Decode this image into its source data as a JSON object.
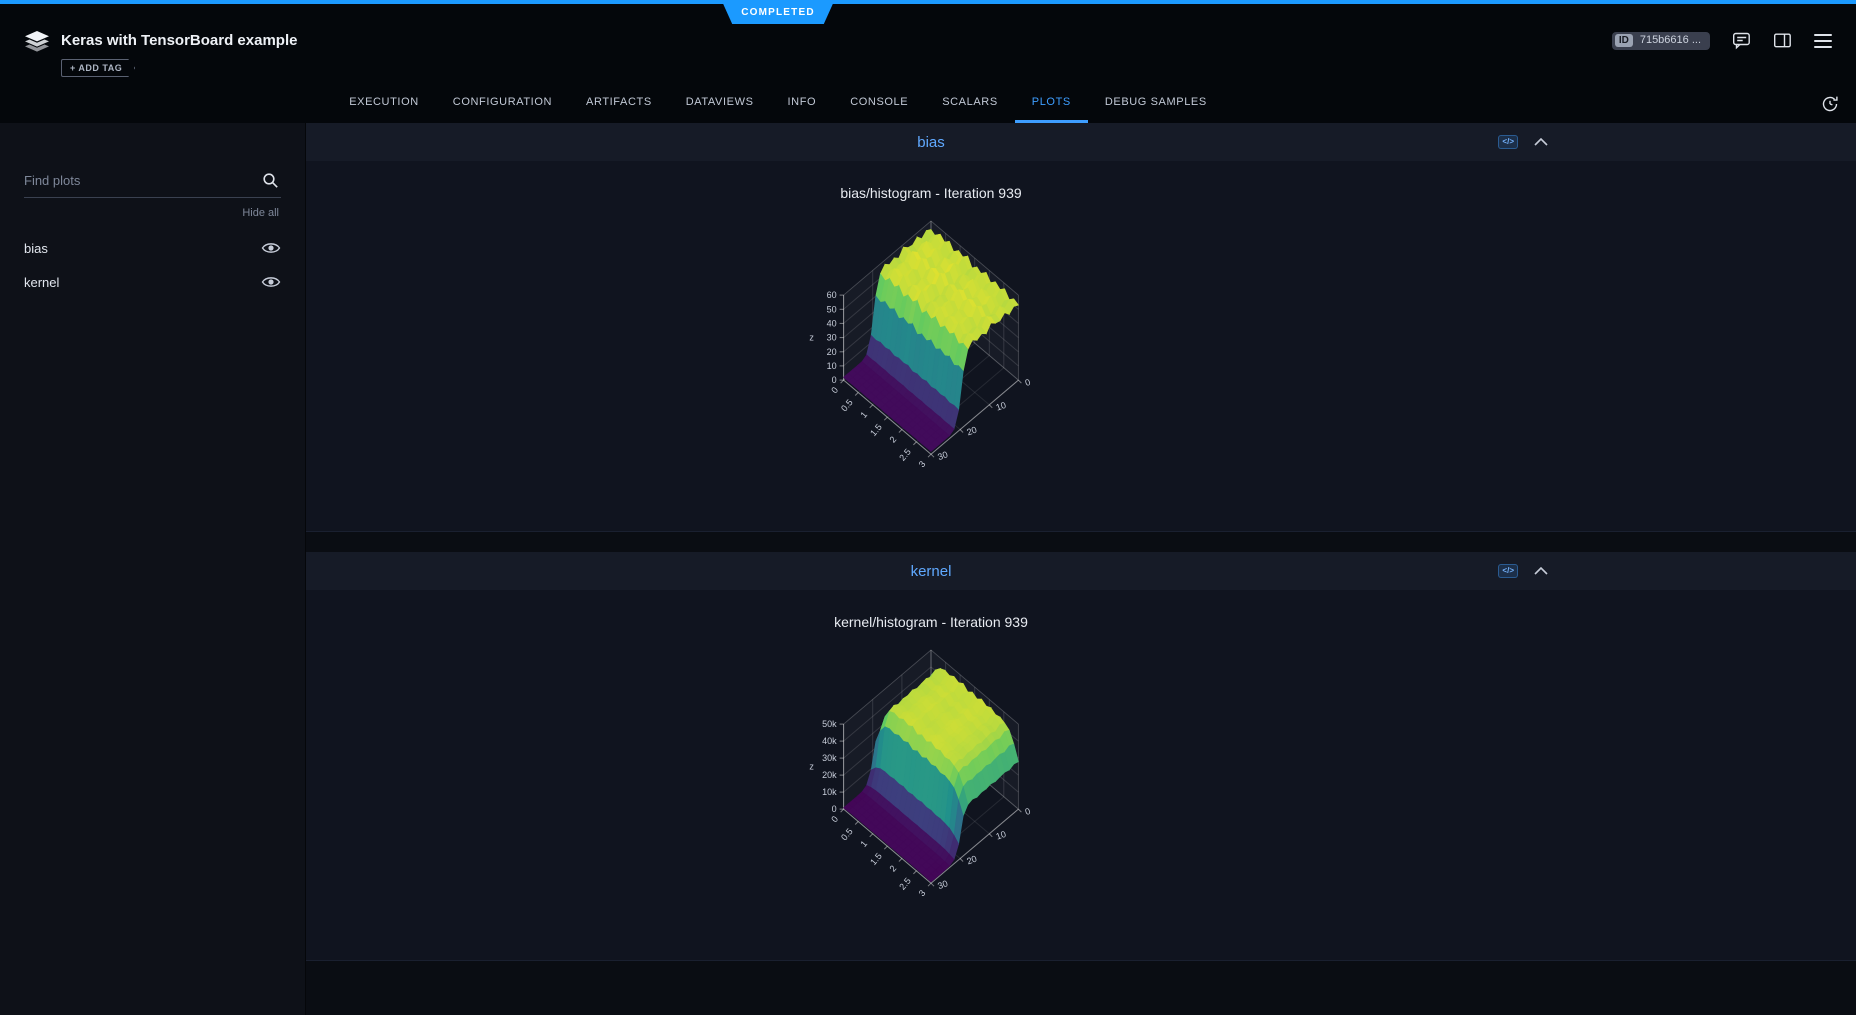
{
  "app": {
    "status_badge": "COMPLETED",
    "title": "Keras with TensorBoard example",
    "add_tag_label": "+ ADD TAG",
    "id_label": "ID",
    "id_value": "715b6616 ...",
    "accent_color": "#1b9aff",
    "active_tab_color": "#3e9eff"
  },
  "tabs": [
    {
      "label": "EXECUTION"
    },
    {
      "label": "CONFIGURATION"
    },
    {
      "label": "ARTIFACTS"
    },
    {
      "label": "DATAVIEWS"
    },
    {
      "label": "INFO"
    },
    {
      "label": "CONSOLE"
    },
    {
      "label": "SCALARS"
    },
    {
      "label": "PLOTS",
      "active": true
    },
    {
      "label": "DEBUG SAMPLES"
    }
  ],
  "sidebar": {
    "search_placeholder": "Find plots",
    "hide_all_label": "Hide all",
    "items": [
      {
        "label": "bias"
      },
      {
        "label": "kernel"
      }
    ]
  },
  "icons": {
    "embed_code_glyph": "</>"
  },
  "chart_data": [
    {
      "type": "surface",
      "name": "bias",
      "title": "bias/histogram - Iteration 939",
      "z_label": "z",
      "z_max": 60,
      "z_ticks": {
        "labels": [
          "0",
          "10",
          "20",
          "30",
          "40",
          "50",
          "60"
        ],
        "values": [
          0,
          10,
          20,
          30,
          40,
          50,
          60
        ]
      },
      "x_ticks": {
        "labels": [
          "0",
          "0.5",
          "1",
          "1.5",
          "2",
          "2.5",
          "3"
        ]
      },
      "y_ticks": {
        "labels": [
          "0",
          "10",
          "20",
          "30"
        ]
      },
      "colorscale": "viridis",
      "surface_profile": [
        54,
        56,
        53,
        57,
        54,
        55,
        58,
        53,
        56,
        54,
        57,
        53,
        40,
        15,
        4,
        2,
        2,
        2,
        2,
        2
      ],
      "surface_wave": [
        1.0,
        0.96,
        1.04,
        0.98,
        1.05,
        0.95,
        1.03,
        0.99,
        1.06,
        0.94,
        1.02,
        0.97,
        1.05,
        0.96,
        1.03,
        0.98,
        1.04,
        0.95,
        1.01,
        0.98
      ]
    },
    {
      "type": "surface",
      "name": "kernel",
      "title": "kernel/histogram - Iteration 939",
      "z_label": "z",
      "z_max": 50000,
      "z_ticks": {
        "labels": [
          "0",
          "10k",
          "20k",
          "30k",
          "40k",
          "50k"
        ],
        "values": [
          0,
          10000,
          20000,
          30000,
          40000,
          50000
        ]
      },
      "x_ticks": {
        "labels": [
          "0",
          "0.5",
          "1",
          "1.5",
          "2",
          "2.5",
          "3"
        ]
      },
      "y_ticks": {
        "labels": [
          "0",
          "10",
          "20",
          "30"
        ]
      },
      "colorscale": "viridis",
      "surface_profile": [
        45000,
        46500,
        44500,
        46000,
        45500,
        44800,
        46200,
        45200,
        45800,
        44600,
        46400,
        45000,
        38000,
        15000,
        4000,
        1500,
        1200,
        1200,
        1200,
        1200
      ],
      "surface_wave": [
        0.62,
        0.85,
        0.97,
        1.0,
        0.98,
        1.02,
        0.99,
        1.03,
        0.97,
        1.02,
        0.98,
        1.03,
        0.99,
        1.02,
        0.98,
        1.0,
        0.97,
        0.93,
        0.8,
        0.62
      ]
    }
  ]
}
